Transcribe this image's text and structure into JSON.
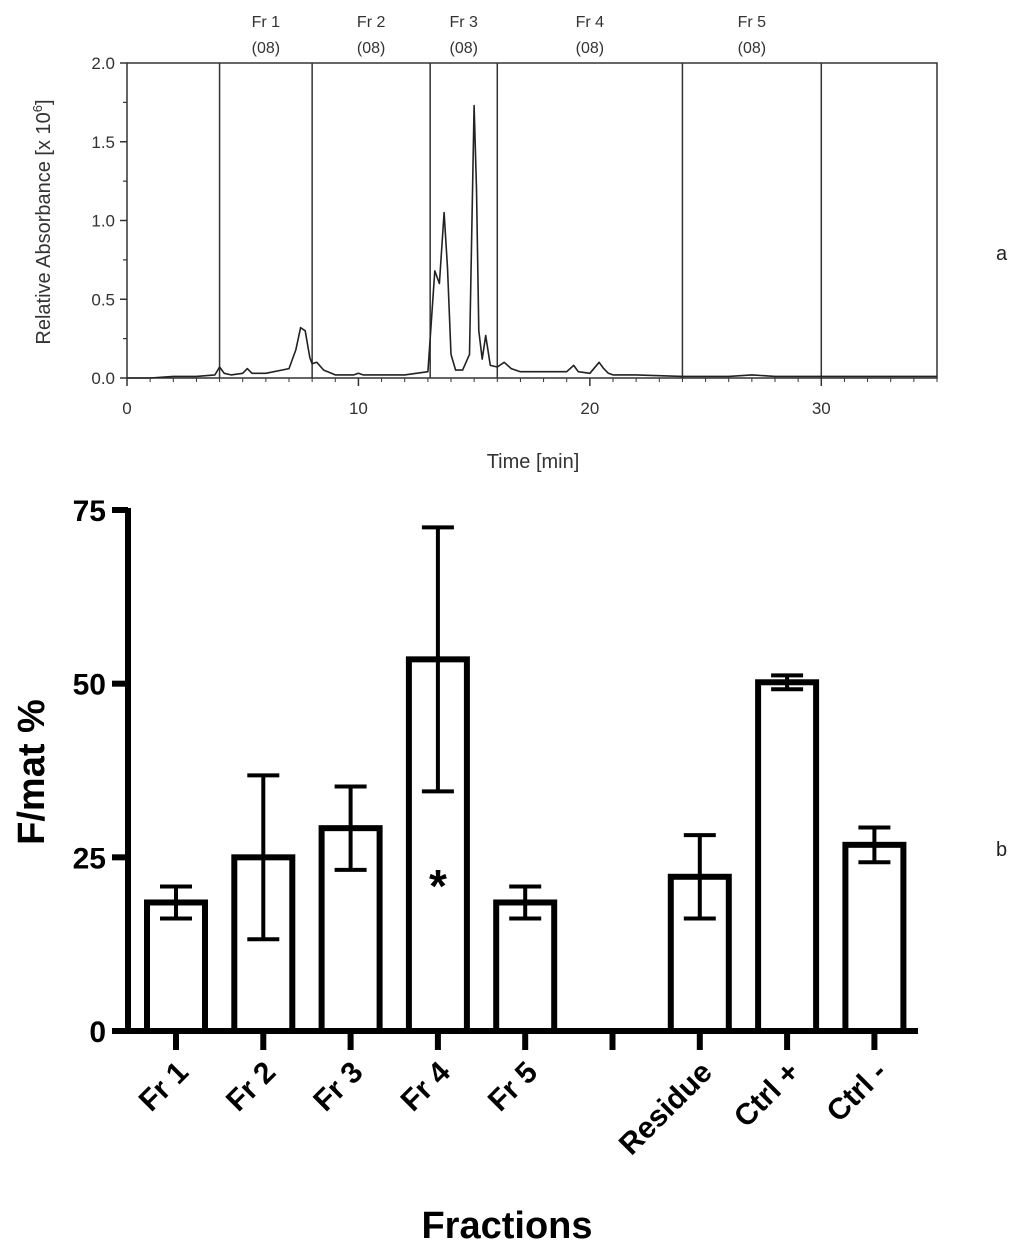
{
  "chart_data": [
    {
      "type": "line",
      "panel_label": "a",
      "xlabel": "Time [min]",
      "ylabel": "Relative Absorbance [x 10",
      "ylabel_exp": "6",
      "ylabel_close": "]",
      "xlim": [
        0,
        35
      ],
      "ylim": [
        0,
        2.0
      ],
      "xticks": [
        "0",
        "10",
        "20",
        "30"
      ],
      "yticks": [
        "0.0",
        "0.5",
        "1.0",
        "1.5",
        "2.0"
      ],
      "fraction_boundaries": [
        4.0,
        8.0,
        13.1,
        16.0,
        24.0,
        30.0
      ],
      "fractions": [
        {
          "name": "Fr 1",
          "code": "(08)"
        },
        {
          "name": "Fr 2",
          "code": "(08)"
        },
        {
          "name": "Fr 3",
          "code": "(08)"
        },
        {
          "name": "Fr 4",
          "code": "(08)"
        },
        {
          "name": "Fr 5",
          "code": "(08)"
        }
      ],
      "series": [
        {
          "name": "chromatogram",
          "x": [
            0,
            1,
            2,
            3,
            3.8,
            4.0,
            4.2,
            4.5,
            5.0,
            5.2,
            5.4,
            6.0,
            7.0,
            7.3,
            7.5,
            7.7,
            7.9,
            8.0,
            8.2,
            8.5,
            9.0,
            9.8,
            10.0,
            10.2,
            11.0,
            12.0,
            13.0,
            13.3,
            13.5,
            13.7,
            13.85,
            14.0,
            14.2,
            14.5,
            14.8,
            15.0,
            15.1,
            15.2,
            15.35,
            15.5,
            15.7,
            16.0,
            16.3,
            16.6,
            17.0,
            18.0,
            19.0,
            19.3,
            19.5,
            20.0,
            20.4,
            20.6,
            20.8,
            21.0,
            22.0,
            24.0,
            26.0,
            27.0,
            28.0,
            30.0,
            32.0,
            35.0
          ],
          "y": [
            0.0,
            0.0,
            0.01,
            0.01,
            0.02,
            0.07,
            0.03,
            0.02,
            0.03,
            0.06,
            0.03,
            0.03,
            0.06,
            0.18,
            0.32,
            0.3,
            0.13,
            0.09,
            0.1,
            0.05,
            0.02,
            0.02,
            0.03,
            0.02,
            0.02,
            0.02,
            0.04,
            0.68,
            0.6,
            1.05,
            0.7,
            0.15,
            0.05,
            0.05,
            0.15,
            1.73,
            1.2,
            0.3,
            0.12,
            0.27,
            0.08,
            0.07,
            0.1,
            0.06,
            0.04,
            0.04,
            0.04,
            0.08,
            0.04,
            0.03,
            0.1,
            0.06,
            0.03,
            0.02,
            0.02,
            0.01,
            0.01,
            0.02,
            0.01,
            0.01,
            0.01,
            0.01
          ]
        }
      ]
    },
    {
      "type": "bar",
      "panel_label": "b",
      "title": "",
      "xlabel": "Fractions",
      "ylabel": "F/mat %",
      "ylim": [
        0,
        75
      ],
      "yticks": [
        "0",
        "25",
        "50",
        "75"
      ],
      "categories": [
        "Fr 1",
        "Fr 2",
        "Fr 3",
        "Fr 4",
        "Fr 5",
        "",
        "Residue",
        "Ctrl +",
        "Ctrl -"
      ],
      "values": [
        18.5,
        25.0,
        29.2,
        53.5,
        18.5,
        null,
        22.2,
        50.2,
        26.8
      ],
      "error": [
        2.3,
        11.8,
        6.0,
        19.0,
        2.3,
        null,
        6.0,
        1.0,
        2.5
      ],
      "annotations": [
        {
          "category": "Fr 4",
          "text": "*"
        }
      ]
    }
  ]
}
